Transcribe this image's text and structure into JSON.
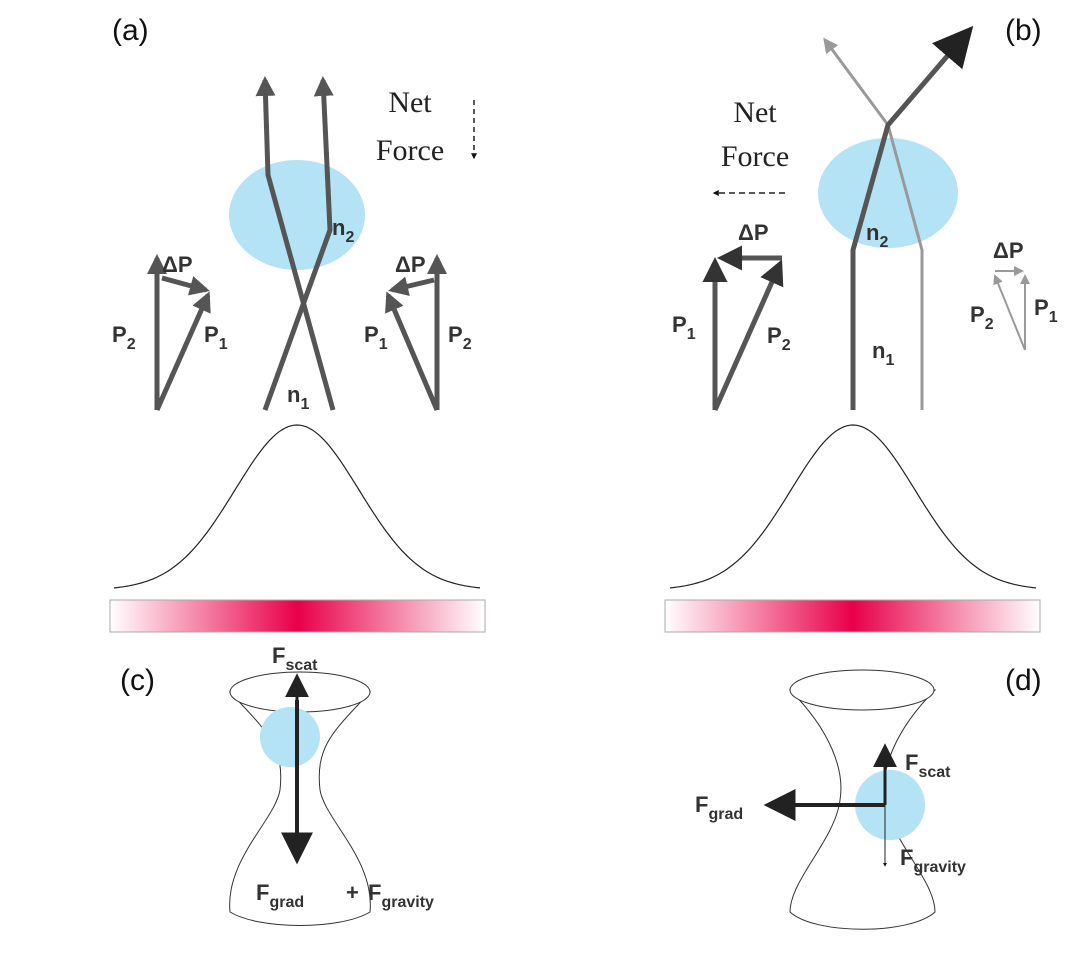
{
  "panels": {
    "a": {
      "label": "(a)",
      "net_force": [
        "Net",
        "Force"
      ],
      "particle_index": {
        "main": "n",
        "sub": "2"
      },
      "medium_index": {
        "main": "n",
        "sub": "1"
      },
      "left_triangle": {
        "delta": "ΔP",
        "left": {
          "main": "P",
          "sub": "2"
        },
        "right": {
          "main": "P",
          "sub": "1"
        }
      },
      "right_triangle": {
        "delta": "ΔP",
        "left": {
          "main": "P",
          "sub": "1"
        },
        "right": {
          "main": "P",
          "sub": "2"
        }
      }
    },
    "b": {
      "label": "(b)",
      "net_force": [
        "Net",
        "Force"
      ],
      "particle_index": {
        "main": "n",
        "sub": "2"
      },
      "medium_index": {
        "main": "n",
        "sub": "1"
      },
      "dark_triangle": {
        "delta": "ΔP",
        "left": {
          "main": "P",
          "sub": "1"
        },
        "right": {
          "main": "P",
          "sub": "2"
        }
      },
      "light_triangle": {
        "delta": "ΔP",
        "left": {
          "main": "P",
          "sub": "2"
        },
        "right": {
          "main": "P",
          "sub": "1"
        }
      }
    },
    "c": {
      "label": "(c)",
      "scattering": {
        "main": "F",
        "sub": "scat"
      },
      "gradient": {
        "main": "F",
        "sub": "grad"
      },
      "plus": "+",
      "gravity": {
        "main": "F",
        "sub": "gravity"
      }
    },
    "d": {
      "label": "(d)",
      "scattering": {
        "main": "F",
        "sub": "scat"
      },
      "gradient": {
        "main": "F",
        "sub": "grad"
      },
      "gravity": {
        "main": "F",
        "sub": "gravity"
      }
    }
  }
}
